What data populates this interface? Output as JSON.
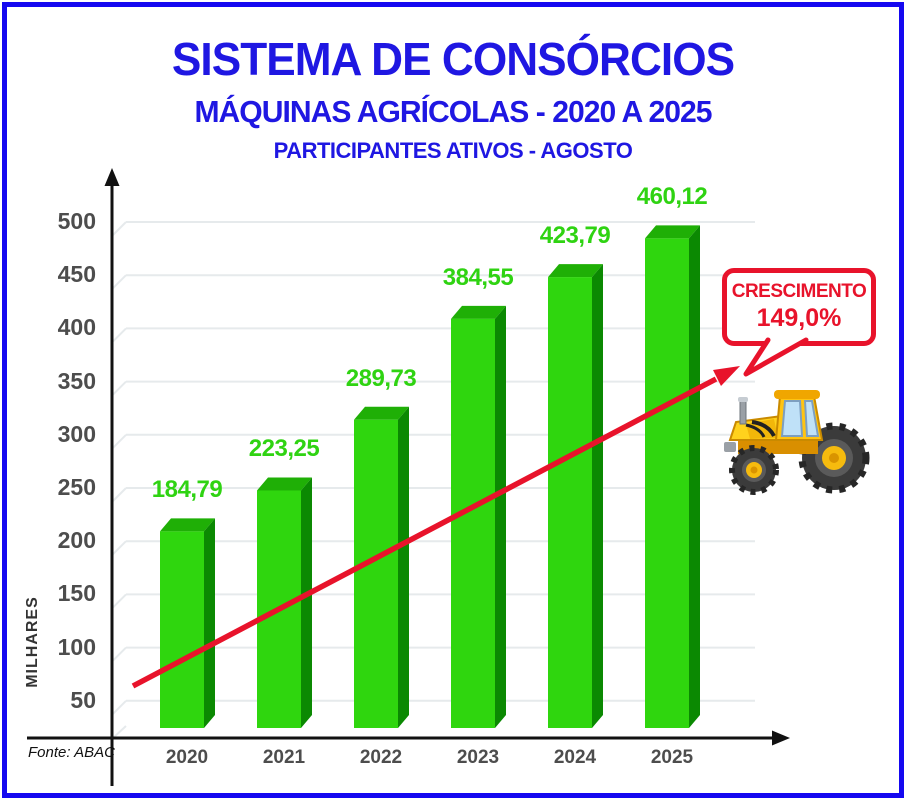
{
  "page": {
    "title": "SISTEMA DE CONSÓRCIOS",
    "subtitle": "MÁQUINAS AGRÍCOLAS - 2020 A 2025",
    "subtitle2": "PARTICIPANTES ATIVOS - AGOSTO",
    "source": "Fonte: ABAC"
  },
  "callout": {
    "line1": "CRESCIMENTO",
    "line2": "149,0%"
  },
  "colors": {
    "title_blue": "#1f17e2",
    "border_blue": "#1508f0",
    "bar_front": "#2fd60e",
    "bar_top": "#1faf06",
    "bar_side": "#0b8902",
    "label_green": "#2fd312",
    "red": "#e8132b",
    "grid": "#e6eaec",
    "axis": "#111111",
    "tick_text": "#4d4d4d"
  },
  "chart_data": {
    "type": "bar",
    "title": "SISTEMA DE CONSÓRCIOS — MÁQUINAS AGRÍCOLAS - 2020 A 2025 — PARTICIPANTES ATIVOS - AGOSTO",
    "categories": [
      "2020",
      "2021",
      "2022",
      "2023",
      "2024",
      "2025"
    ],
    "values": [
      184.79,
      223.25,
      289.73,
      384.55,
      423.79,
      460.12
    ],
    "value_labels": [
      "184,79",
      "223,25",
      "289,73",
      "384,55",
      "423,79",
      "460,12"
    ],
    "xlabel": "",
    "ylabel": "MILHARES",
    "yticks": [
      50,
      100,
      150,
      200,
      250,
      300,
      350,
      400,
      450,
      500
    ],
    "ylim": [
      0,
      530
    ],
    "grid": true,
    "style": "3d-green-bars",
    "legend_position": "none",
    "annotations": [
      {
        "type": "trend-arrow",
        "color": "#e8132b",
        "text": "CRESCIMENTO 149,0%"
      }
    ],
    "source": "Fonte: ABAC"
  }
}
